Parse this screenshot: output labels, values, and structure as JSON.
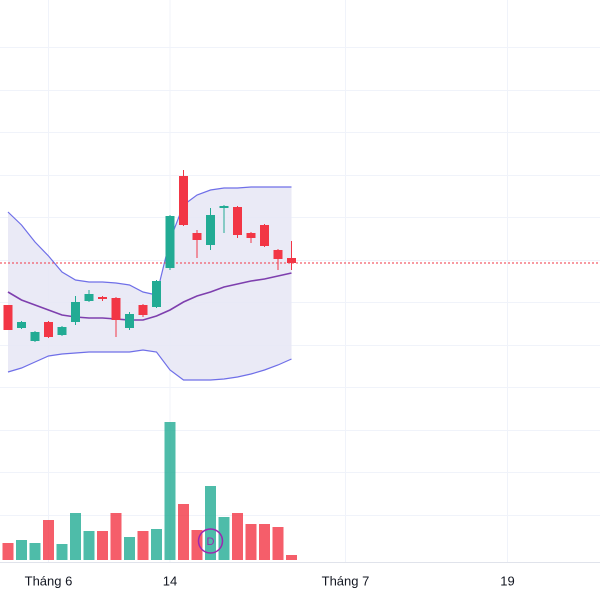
{
  "chart_data": {
    "type": "candlestick",
    "categories": [
      null,
      null,
      null,
      "Tháng 6",
      null,
      null,
      null,
      null,
      null,
      null,
      null,
      null,
      "14",
      null,
      null,
      null,
      null,
      null,
      null,
      null,
      null,
      null,
      null,
      null,
      null,
      "Tháng 7",
      null,
      null,
      null,
      null,
      null,
      null,
      null,
      null,
      null,
      null,
      null,
      "19",
      null,
      null,
      null,
      null,
      null,
      null
    ],
    "open": [
      29.5,
      27.2,
      25.9,
      27.8,
      26.5,
      27.8,
      29.9,
      30.3,
      30.2,
      27.2,
      29.5,
      29.3,
      33.2,
      42.4,
      36.7,
      35.5,
      39.2,
      39.3,
      36.7,
      37.5,
      35.0,
      34.2,
      null,
      null,
      null,
      null,
      null,
      null,
      null,
      null,
      null,
      null,
      null,
      null,
      null,
      null,
      null,
      null,
      null,
      null,
      null,
      null,
      null,
      null
    ],
    "high": [
      29.5,
      27.9,
      26.9,
      27.9,
      27.4,
      30.4,
      31.0,
      30.4,
      30.3,
      28.8,
      29.6,
      32.0,
      38.5,
      43.0,
      37.0,
      39.2,
      39.5,
      39.4,
      36.8,
      37.6,
      35.1,
      35.9,
      null,
      null,
      null,
      null,
      null,
      null,
      null,
      null,
      null,
      null,
      null,
      null,
      null,
      null,
      null,
      null,
      null,
      null,
      null,
      null,
      null,
      null
    ],
    "low": [
      27.0,
      27.1,
      25.8,
      26.2,
      26.4,
      27.5,
      29.8,
      29.9,
      26.3,
      27.0,
      28.3,
      29.2,
      33.0,
      37.4,
      34.2,
      35.0,
      36.7,
      36.2,
      35.7,
      35.3,
      33.0,
      33.0,
      null,
      null,
      null,
      null,
      null,
      null,
      null,
      null,
      null,
      null,
      null,
      null,
      null,
      null,
      null,
      null,
      null,
      null,
      null,
      null,
      null,
      null
    ],
    "close": [
      27.0,
      27.8,
      26.8,
      26.3,
      27.3,
      29.8,
      30.6,
      30.1,
      28.0,
      28.6,
      28.5,
      31.9,
      38.4,
      37.5,
      36.0,
      38.5,
      39.4,
      36.5,
      36.2,
      35.4,
      34.1,
      33.7,
      null,
      null,
      null,
      null,
      null,
      null,
      null,
      null,
      null,
      null,
      null,
      null,
      null,
      null,
      null,
      null,
      null,
      null,
      null,
      null,
      null,
      null
    ],
    "volume": [
      17,
      20,
      17,
      40,
      16,
      47,
      29,
      29,
      47,
      23,
      29,
      31,
      138,
      56,
      30,
      74,
      43,
      47,
      36,
      36,
      33,
      5,
      null,
      null,
      null,
      null,
      null,
      null,
      null,
      null,
      null,
      null,
      null,
      null,
      null,
      null,
      null,
      null,
      null,
      null,
      null,
      null,
      null,
      null
    ],
    "bands": {
      "upper": [
        38.8,
        37.5,
        35.8,
        34.4,
        32.8,
        32.0,
        31.8,
        31.8,
        31.7,
        31.5,
        30.8,
        30.5,
        36.0,
        39.5,
        40.5,
        41.0,
        41.2,
        41.2,
        41.3,
        41.3,
        41.3,
        41.3,
        null,
        null,
        null,
        null,
        null,
        null,
        null,
        null,
        null,
        null,
        null,
        null,
        null,
        null,
        null,
        null,
        null,
        null,
        null,
        null,
        null,
        null
      ],
      "middle": [
        30.8,
        30.0,
        29.5,
        29.0,
        28.5,
        28.3,
        28.2,
        28.2,
        28.1,
        28.0,
        28.0,
        28.4,
        29.0,
        29.8,
        30.4,
        30.8,
        31.3,
        31.6,
        31.9,
        32.1,
        32.4,
        32.7,
        null,
        null,
        null,
        null,
        null,
        null,
        null,
        null,
        null,
        null,
        null,
        null,
        null,
        null,
        null,
        null,
        null,
        null,
        null,
        null,
        null,
        null
      ],
      "lower": [
        22.8,
        23.2,
        23.8,
        24.4,
        24.6,
        24.7,
        24.8,
        24.8,
        24.8,
        24.8,
        25.0,
        24.8,
        23.0,
        22.0,
        22.0,
        22.0,
        22.1,
        22.3,
        22.6,
        23.0,
        23.5,
        24.1,
        null,
        null,
        null,
        null,
        null,
        null,
        null,
        null,
        null,
        null,
        null,
        null,
        null,
        null,
        null,
        null,
        null,
        null,
        null,
        null,
        null,
        null
      ]
    },
    "ylim": [
      4,
      60
    ],
    "volume_lim": [
      0,
      140
    ],
    "up_color": "#22ab94",
    "down_color": "#f23645",
    "band_color": "#6f6fe8",
    "middle_color": "#7e3fae",
    "band_fill": "#e6e6f5",
    "event_marker": {
      "label": "D",
      "index": 15,
      "color": "#9c27b0"
    }
  }
}
